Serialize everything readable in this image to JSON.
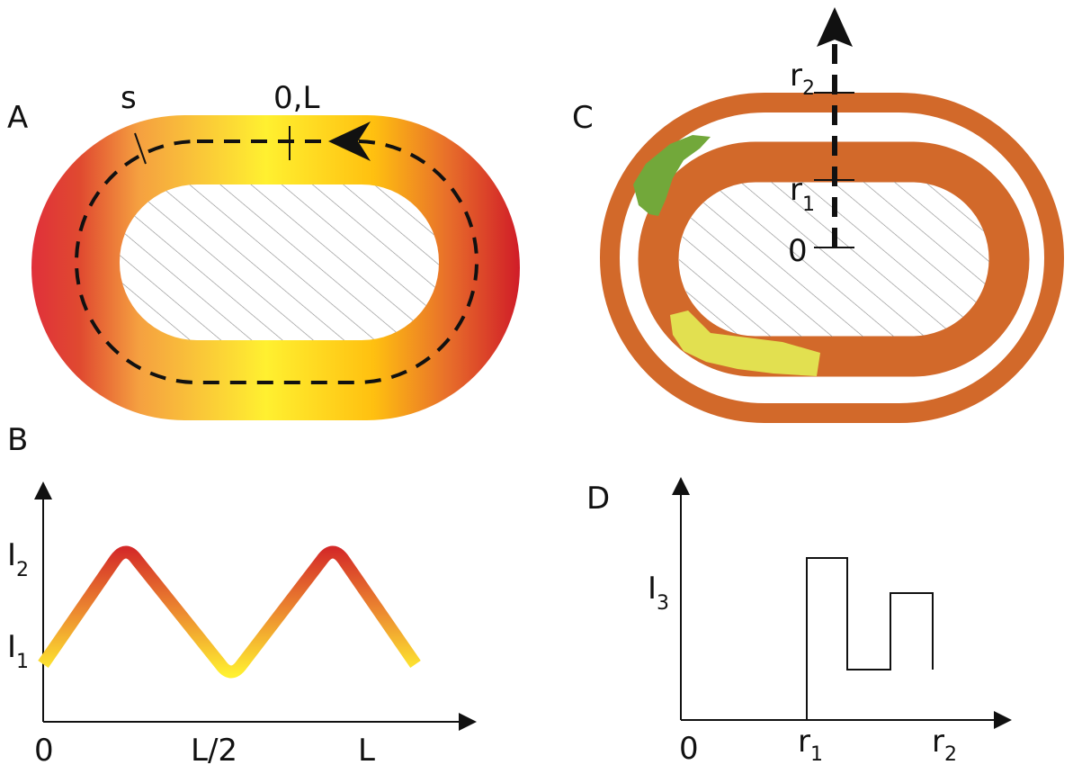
{
  "panels": {
    "A": {
      "letter": "A",
      "labels": {
        "s": "s",
        "origin": "0,L"
      }
    },
    "B": {
      "letter": "B",
      "y_labels": [
        {
          "base": "I",
          "sub": "2"
        },
        {
          "base": "I",
          "sub": "1"
        }
      ],
      "x_labels": [
        "0",
        "L/2",
        "L"
      ]
    },
    "C": {
      "letter": "C",
      "labels": [
        {
          "base": "r",
          "sub": "2"
        },
        {
          "base": "r",
          "sub": "1"
        },
        {
          "base": "0",
          "sub": ""
        }
      ]
    },
    "D": {
      "letter": "D",
      "y_label": {
        "base": "I",
        "sub": "3"
      },
      "x_labels": [
        {
          "base": "0",
          "sub": ""
        },
        {
          "base": "r",
          "sub": "1"
        },
        {
          "base": "r",
          "sub": "2"
        }
      ]
    }
  }
}
